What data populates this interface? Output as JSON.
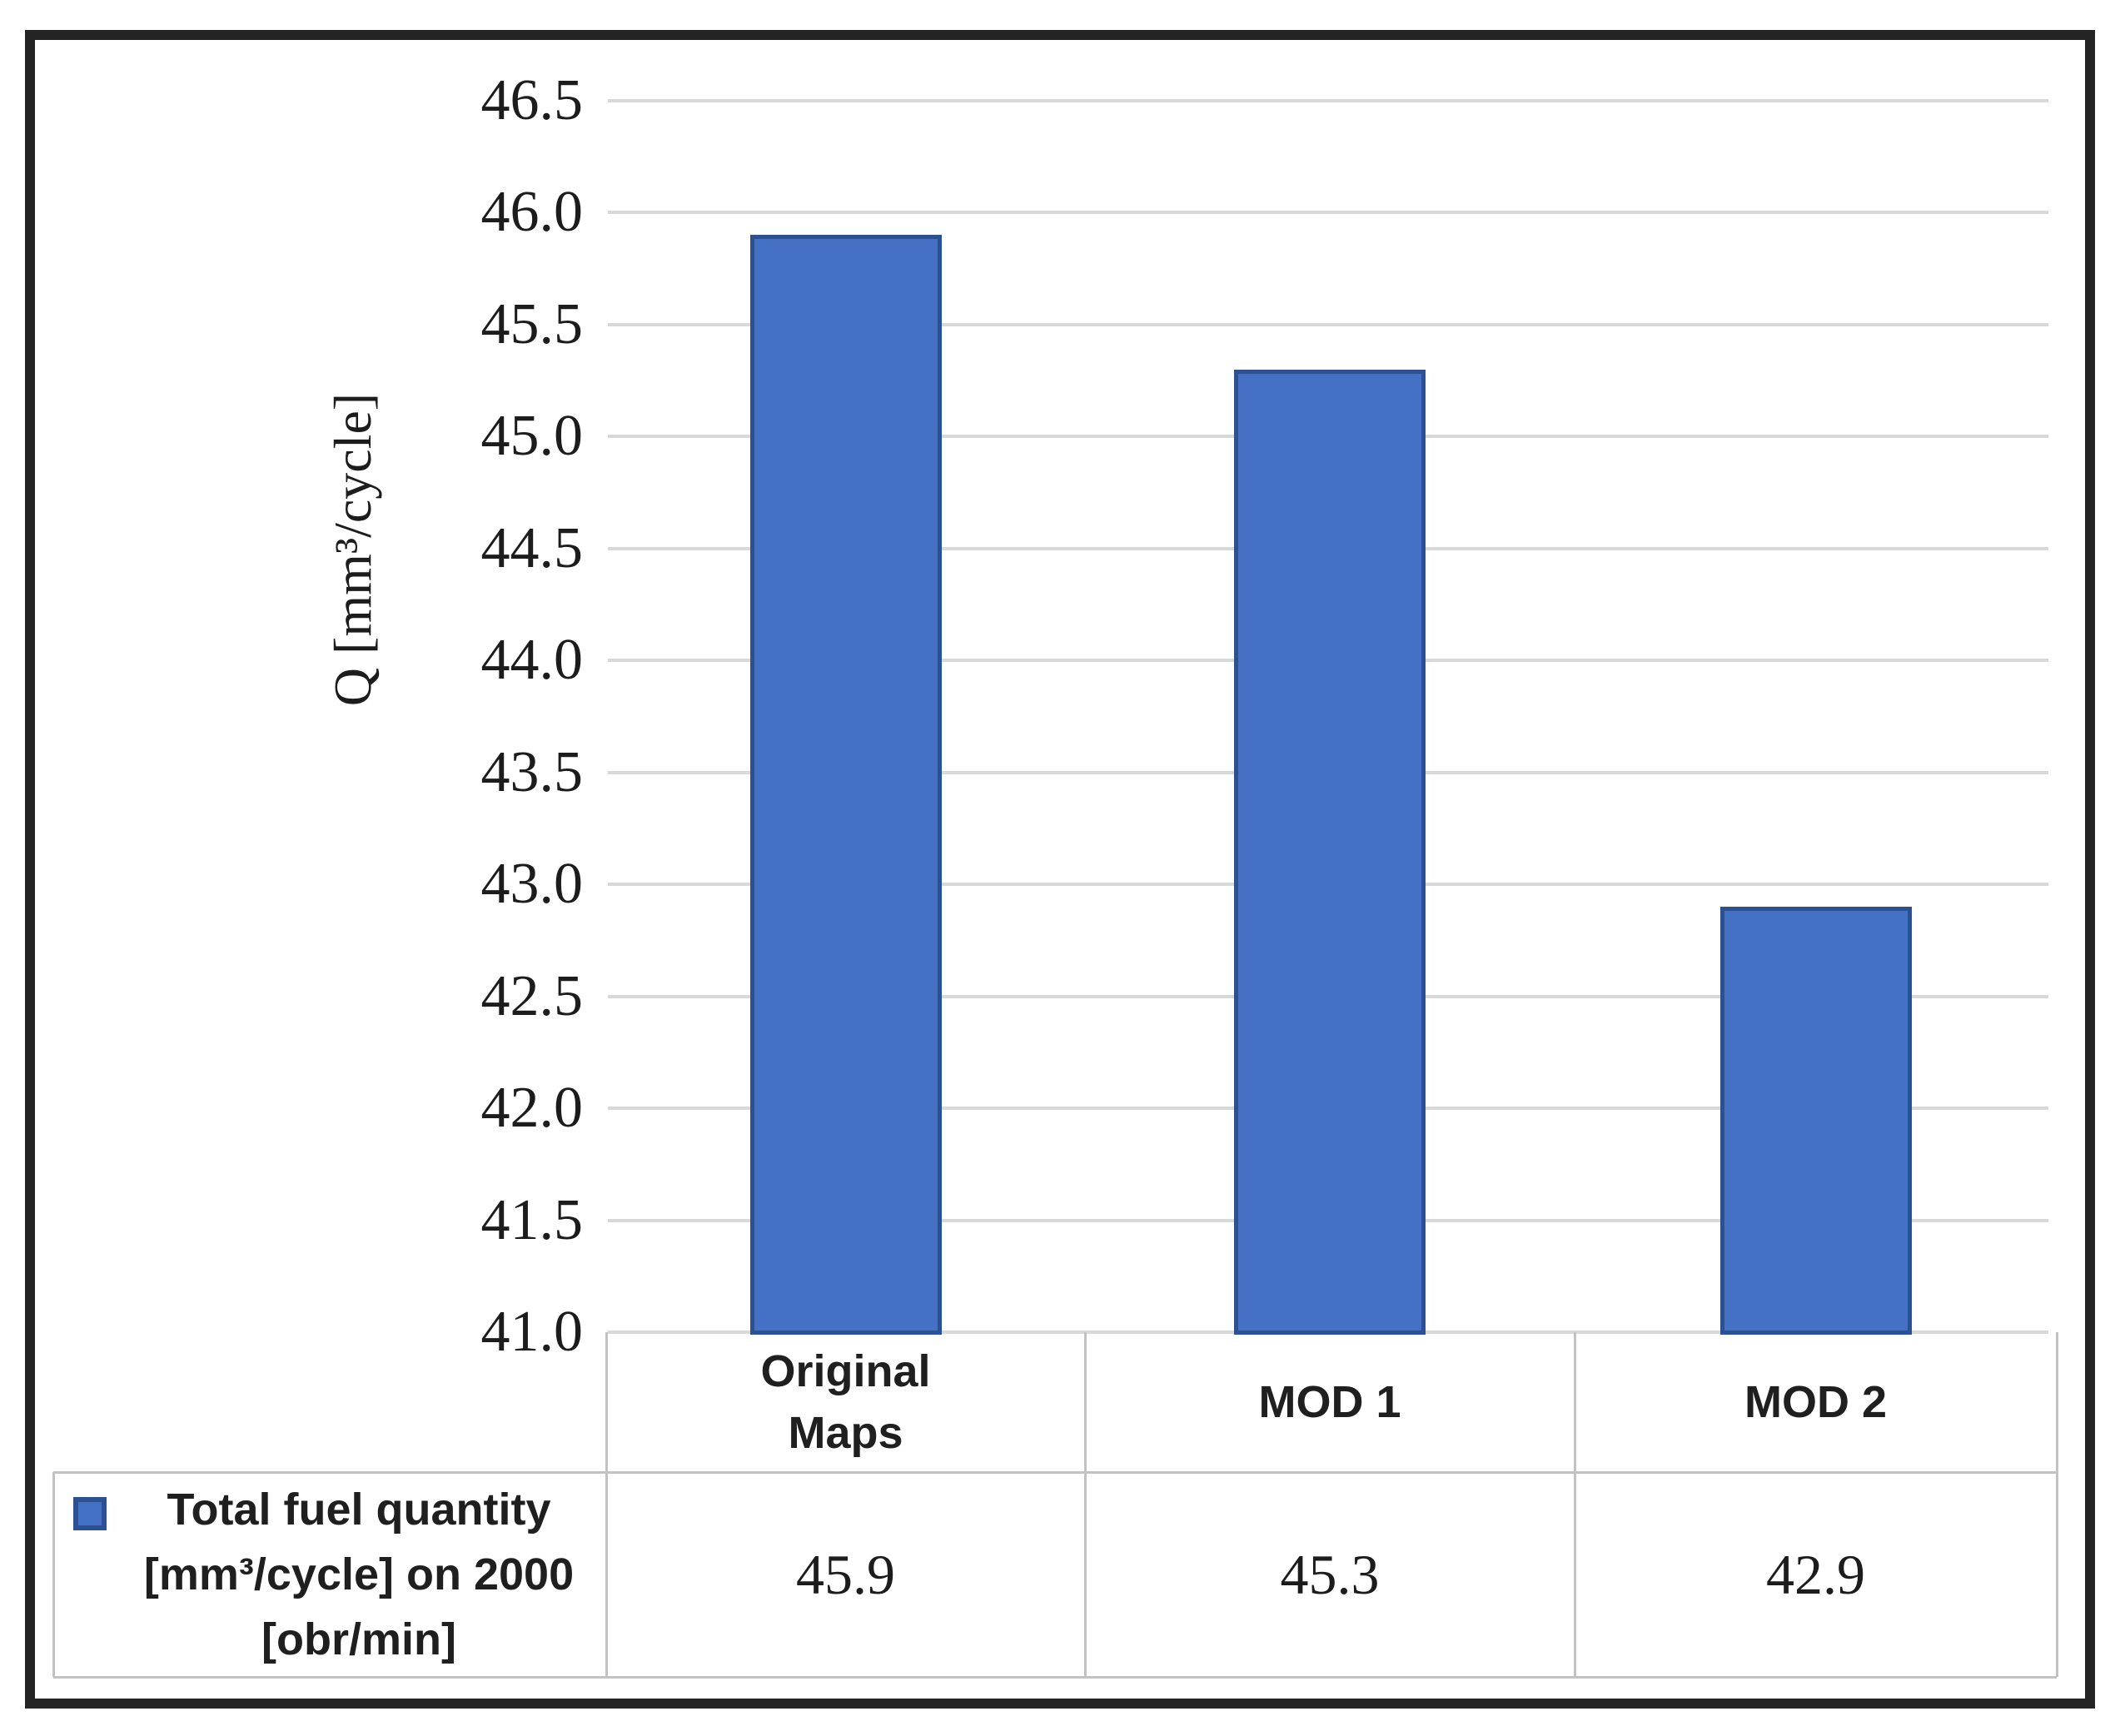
{
  "chart_data": {
    "type": "bar",
    "title": "",
    "categories": [
      "Original Maps",
      "MOD 1",
      "MOD 2"
    ],
    "categories_display": [
      "Original\nMaps",
      "MOD 1",
      "MOD 2"
    ],
    "series": [
      {
        "name": "Total fuel quantity [mm³/cycle] on 2000 [obr/min]",
        "values": [
          45.9,
          45.3,
          42.9
        ]
      }
    ],
    "xlabel": "",
    "ylabel": "Q [mm³/cycle]",
    "ylim": [
      41.0,
      46.5
    ],
    "ytick_step": 0.5,
    "ytick_labels": [
      "46.5",
      "46.0",
      "45.5",
      "45.0",
      "44.5",
      "44.0",
      "43.5",
      "43.0",
      "42.5",
      "42.0",
      "41.5",
      "41.0"
    ],
    "grid": true,
    "legend_position": "bottom-data-table",
    "bar_color": "#4471C4",
    "bar_border_color": "#2C5193"
  },
  "legend": {
    "label": "Total fuel quantity\n[mm³/cycle] on 2000\n[obr/min]",
    "marker_color": "#4471C4"
  },
  "data_table_values": [
    "45.9",
    "45.3",
    "42.9"
  ],
  "colors": {
    "bar_fill": "#4471C4",
    "bar_border": "#2C5193",
    "gridline": "#D8D8D8",
    "table_border": "#C2C2C2",
    "text": "#1f1f1f",
    "outer_frame": "#232323"
  }
}
